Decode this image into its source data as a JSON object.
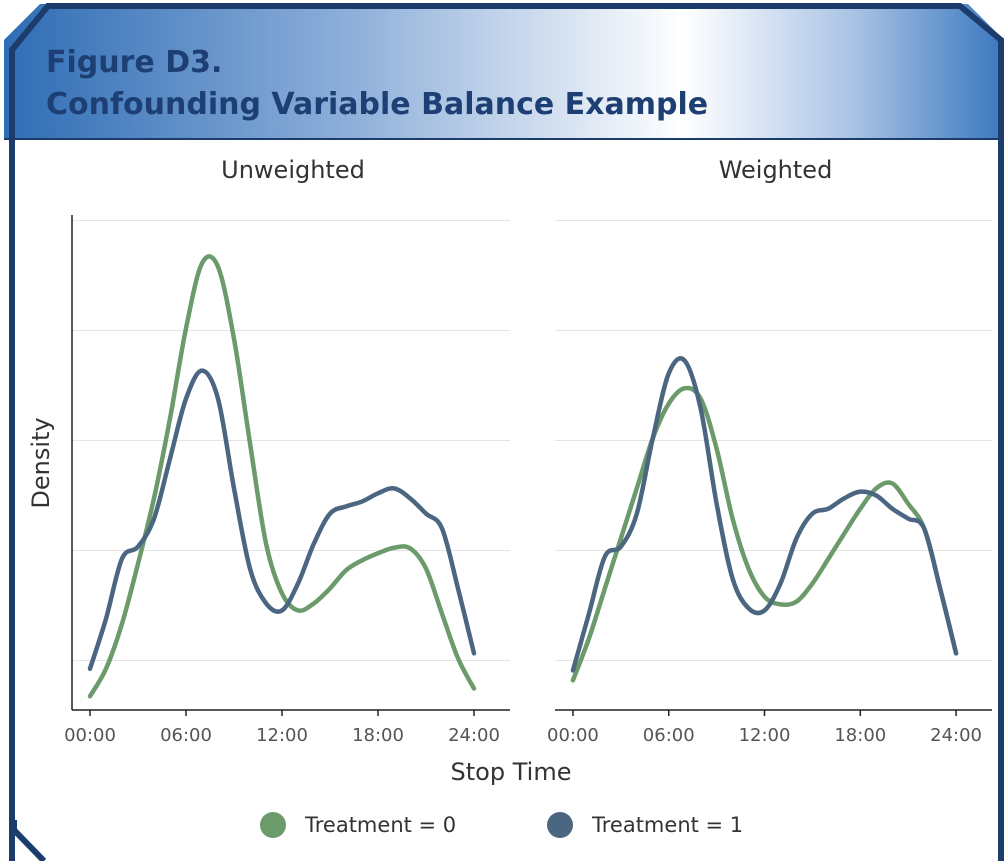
{
  "title": [
    "Figure D3.",
    "Confounding Variable Balance Example"
  ],
  "xlabel": "Stop Time",
  "ylabel": "Density",
  "chart_data": [
    {
      "type": "line",
      "title": "Unweighted",
      "x": [
        0,
        1,
        2,
        3,
        4,
        5,
        6,
        7,
        8,
        9,
        10,
        11,
        12,
        13,
        14,
        15,
        16,
        17,
        18,
        19,
        20,
        21,
        22,
        23,
        24
      ],
      "series": [
        {
          "name": "Treatment = 0",
          "color": "#6b9a6b",
          "values": [
            0.0135,
            0.0185,
            0.0267,
            0.0376,
            0.0495,
            0.064,
            0.0804,
            0.0922,
            0.0916,
            0.0785,
            0.0595,
            0.0413,
            0.0322,
            0.0291,
            0.0304,
            0.0331,
            0.0364,
            0.0382,
            0.0395,
            0.0405,
            0.0404,
            0.0367,
            0.0285,
            0.0204,
            0.0149
          ]
        },
        {
          "name": "Treatment = 1",
          "color": "#4b6680",
          "values": [
            0.0185,
            0.0276,
            0.0385,
            0.0407,
            0.0458,
            0.0567,
            0.0676,
            0.0727,
            0.0676,
            0.0513,
            0.0367,
            0.0304,
            0.0291,
            0.034,
            0.0413,
            0.0467,
            0.048,
            0.0489,
            0.0504,
            0.0513,
            0.0495,
            0.0467,
            0.044,
            0.0331,
            0.0213
          ]
        }
      ],
      "xlim": [
        -1.125,
        26.25
      ],
      "xticks": [
        {
          "value": 0,
          "label": "00:00"
        },
        {
          "value": 6,
          "label": "06:00"
        },
        {
          "value": 12,
          "label": "12:00"
        },
        {
          "value": 18,
          "label": "18:00"
        },
        {
          "value": 24,
          "label": "24:00"
        }
      ],
      "ylim": [
        0.011,
        0.101
      ],
      "yticks": [
        0.02,
        0.04,
        0.06,
        0.08,
        0.1
      ],
      "grid": true,
      "yaxis_line": true
    },
    {
      "type": "line",
      "title": "Weighted",
      "x": [
        0,
        1,
        2,
        3,
        4,
        5,
        6,
        7,
        8,
        9,
        10,
        11,
        12,
        13,
        14,
        15,
        16,
        17,
        18,
        19,
        20,
        21,
        22,
        23,
        24
      ],
      "series": [
        {
          "color": "#6b9a6b",
          "values": [
            0.0164,
            0.024,
            0.0331,
            0.0422,
            0.0513,
            0.0604,
            0.0667,
            0.0695,
            0.0676,
            0.0585,
            0.0458,
            0.0367,
            0.0316,
            0.0302,
            0.0307,
            0.034,
            0.0385,
            0.0431,
            0.0476,
            0.0513,
            0.0522,
            0.0485,
            0.044,
            0.0331,
            0.0213
          ]
        },
        {
          "color": "#4b6680",
          "values": [
            0.0182,
            0.0285,
            0.0389,
            0.0407,
            0.0467,
            0.0604,
            0.0722,
            0.0745,
            0.0658,
            0.0485,
            0.0349,
            0.0295,
            0.0291,
            0.034,
            0.0422,
            0.0467,
            0.0476,
            0.0495,
            0.0507,
            0.05,
            0.0476,
            0.0458,
            0.044,
            0.0331,
            0.0213
          ]
        }
      ],
      "xlim": [
        -1.125,
        26.25
      ],
      "xticks": [
        {
          "value": 0,
          "label": "00:00"
        },
        {
          "value": 6,
          "label": "06:00"
        },
        {
          "value": 12,
          "label": "12:00"
        },
        {
          "value": 18,
          "label": "18:00"
        },
        {
          "value": 24,
          "label": "24:00"
        }
      ],
      "ylim": [
        0.011,
        0.101
      ],
      "yticks": [
        0.02,
        0.04,
        0.06,
        0.08,
        0.1
      ],
      "grid": true,
      "yaxis_line": false
    }
  ]
}
